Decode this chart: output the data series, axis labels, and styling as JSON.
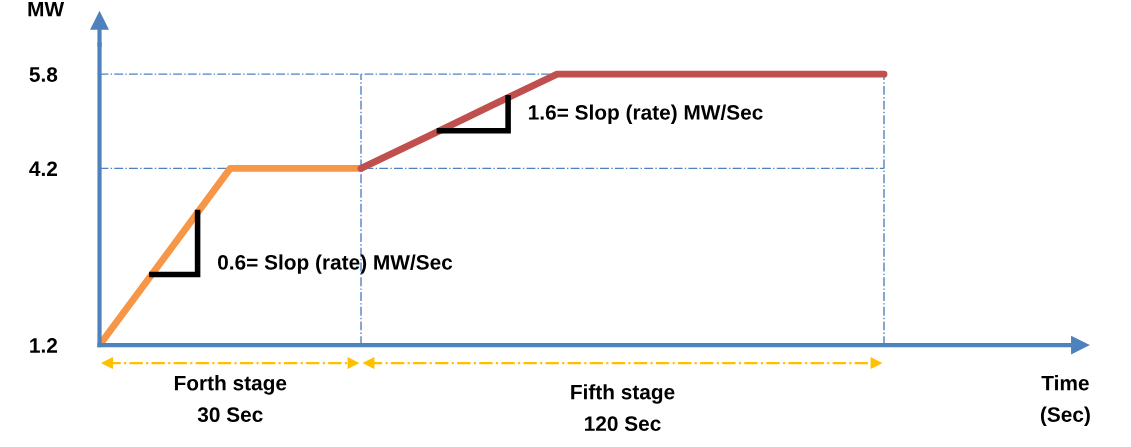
{
  "chart_data": {
    "type": "line",
    "ylabel": "MW",
    "categories": [
      null,
      null,
      null,
      null,
      null,
      null,
      null,
      null,
      null,
      null,
      null,
      null,
      null
    ],
    "series": [
      {
        "color": "#f79646",
        "values": [
          1.2,
          2.7,
          4.2,
          4.2,
          4.2,
          null,
          null,
          null,
          null,
          null,
          null,
          null,
          null
        ]
      },
      {
        "color": "#c0504d",
        "values": [
          null,
          null,
          null,
          null,
          4.2,
          4.73,
          5.27,
          5.8,
          5.8,
          5.8,
          5.8,
          5.8,
          5.8
        ]
      }
    ],
    "ylim": [
      1.2,
      6.3
    ],
    "yticks": [
      1.2,
      4.2,
      5.8
    ],
    "ref_lines": [
      {
        "axis": "y",
        "value": 4.2,
        "color": "#4f81bd",
        "line_style": "dashdot"
      },
      {
        "axis": "y",
        "value": 5.8,
        "color": "#4f81bd",
        "line_style": "dashdot"
      }
    ],
    "annotations": [
      "0.6= Slop (rate) MW/Sec",
      "1.6= Slop (rate) MW/Sec",
      "Forth stage\n30 Sec",
      "Fifth stage\n120 Sec",
      "Time\n(Sec)"
    ],
    "grid": false,
    "legend": false,
    "marker": "none",
    "line_style": "solid"
  }
}
